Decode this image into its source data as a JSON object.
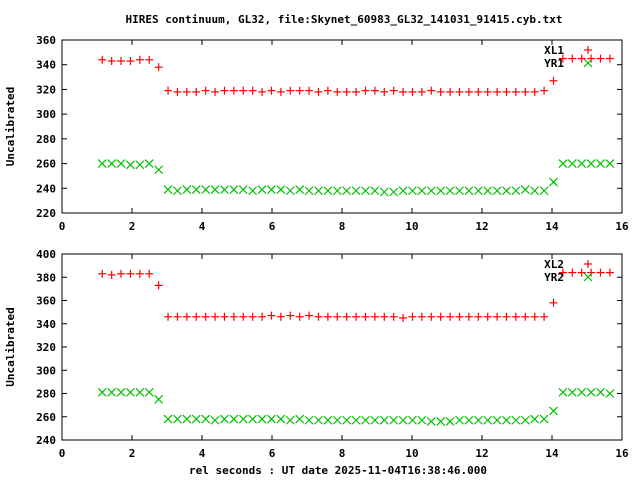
{
  "title": "HIRES continuum, GL32, file:Skynet_60983_GL32_141031_91415.cyb.txt",
  "xlabel": "rel seconds : UT date 2025-11-04T16:38:46.000",
  "colors": {
    "red": "#ff0000",
    "green": "#00c000"
  },
  "chart_data": [
    {
      "type": "scatter",
      "ylabel": "Uncalibrated",
      "xlim": [
        0,
        16
      ],
      "ylim": [
        220,
        360
      ],
      "xticks": [
        "0",
        "2",
        "4",
        "6",
        "8",
        "10",
        "12",
        "14",
        "16"
      ],
      "yticks": [
        "220",
        "240",
        "260",
        "280",
        "300",
        "320",
        "340",
        "360"
      ],
      "x_start": 1.15,
      "x_step": 0.2686,
      "series": [
        {
          "name": "XL1",
          "marker": "plus",
          "color": "#ff0000",
          "values": [
            344,
            343,
            343,
            343,
            344,
            344,
            338,
            319,
            318,
            318,
            318,
            319,
            318,
            319,
            319,
            319,
            319,
            318,
            319,
            318,
            319,
            319,
            319,
            318,
            319,
            318,
            318,
            318,
            319,
            319,
            318,
            319,
            318,
            318,
            318,
            319,
            318,
            318,
            318,
            318,
            318,
            318,
            318,
            318,
            318,
            318,
            318,
            319,
            327,
            345,
            345,
            345,
            345,
            345,
            345
          ]
        },
        {
          "name": "YR1",
          "marker": "cross",
          "color": "#00c000",
          "values": [
            260,
            260,
            260,
            259,
            259,
            260,
            255,
            239,
            238,
            239,
            239,
            239,
            239,
            239,
            239,
            239,
            238,
            239,
            239,
            239,
            238,
            239,
            238,
            238,
            238,
            238,
            238,
            238,
            238,
            238,
            237,
            237,
            238,
            238,
            238,
            238,
            238,
            238,
            238,
            238,
            238,
            238,
            238,
            238,
            238,
            239,
            238,
            238,
            245,
            260,
            260,
            260,
            260,
            260,
            260
          ]
        }
      ]
    },
    {
      "type": "scatter",
      "ylabel": "Uncalibrated",
      "xlim": [
        0,
        16
      ],
      "ylim": [
        240,
        400
      ],
      "xticks": [
        "0",
        "2",
        "4",
        "6",
        "8",
        "10",
        "12",
        "14",
        "16"
      ],
      "yticks": [
        "240",
        "260",
        "280",
        "300",
        "320",
        "340",
        "360",
        "380",
        "400"
      ],
      "x_start": 1.15,
      "x_step": 0.2686,
      "series": [
        {
          "name": "XL2",
          "marker": "plus",
          "color": "#ff0000",
          "values": [
            383,
            382,
            383,
            383,
            383,
            383,
            373,
            346,
            346,
            346,
            346,
            346,
            346,
            346,
            346,
            346,
            346,
            346,
            347,
            346,
            347,
            346,
            347,
            346,
            346,
            346,
            346,
            346,
            346,
            346,
            346,
            346,
            345,
            346,
            346,
            346,
            346,
            346,
            346,
            346,
            346,
            346,
            346,
            346,
            346,
            346,
            346,
            346,
            358,
            384,
            384,
            384,
            384,
            384,
            384
          ]
        },
        {
          "name": "YR2",
          "marker": "cross",
          "color": "#00c000",
          "values": [
            281,
            281,
            281,
            281,
            281,
            281,
            275,
            258,
            258,
            258,
            258,
            258,
            257,
            258,
            258,
            258,
            258,
            258,
            258,
            258,
            257,
            258,
            257,
            257,
            257,
            257,
            257,
            257,
            257,
            257,
            257,
            257,
            257,
            257,
            257,
            256,
            256,
            256,
            257,
            257,
            257,
            257,
            257,
            257,
            257,
            257,
            258,
            258,
            265,
            281,
            281,
            281,
            281,
            281,
            280
          ]
        }
      ]
    }
  ]
}
